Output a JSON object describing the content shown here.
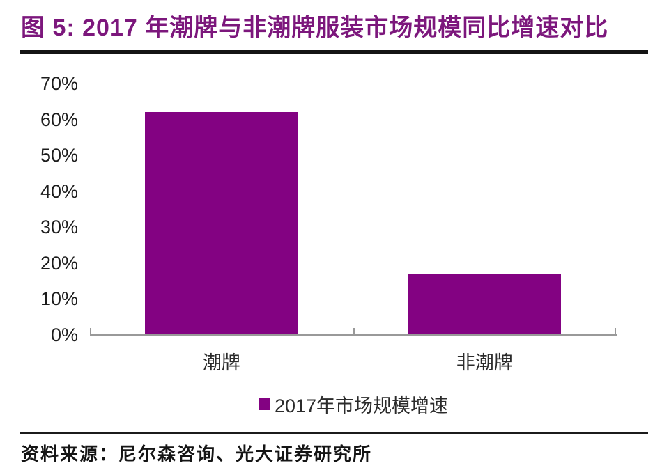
{
  "header": {
    "title": "图 5: 2017 年潮牌与非潮牌服装市场规模同比增速对比",
    "title_color": "#7c177c"
  },
  "chart_data": {
    "type": "bar",
    "title": "2017 年潮牌与非潮牌服装市场规模同比增速对比",
    "categories": [
      "潮牌",
      "非潮牌"
    ],
    "values": [
      62,
      17
    ],
    "value_unit": "%",
    "xlabel": "",
    "ylabel": "",
    "ylim": [
      0,
      70
    ],
    "ytick_step": 10,
    "ytick_labels": [
      "0%",
      "10%",
      "20%",
      "30%",
      "40%",
      "50%",
      "60%",
      "70%"
    ],
    "grid": false,
    "bar_color": "#830282",
    "axis_color": "#999999",
    "legend": {
      "position": "bottom",
      "entries": [
        {
          "label": "2017年市场规模增速",
          "color": "#830282"
        }
      ]
    }
  },
  "footer": {
    "source": "资料来源：尼尔森咨询、光大证券研究所"
  }
}
